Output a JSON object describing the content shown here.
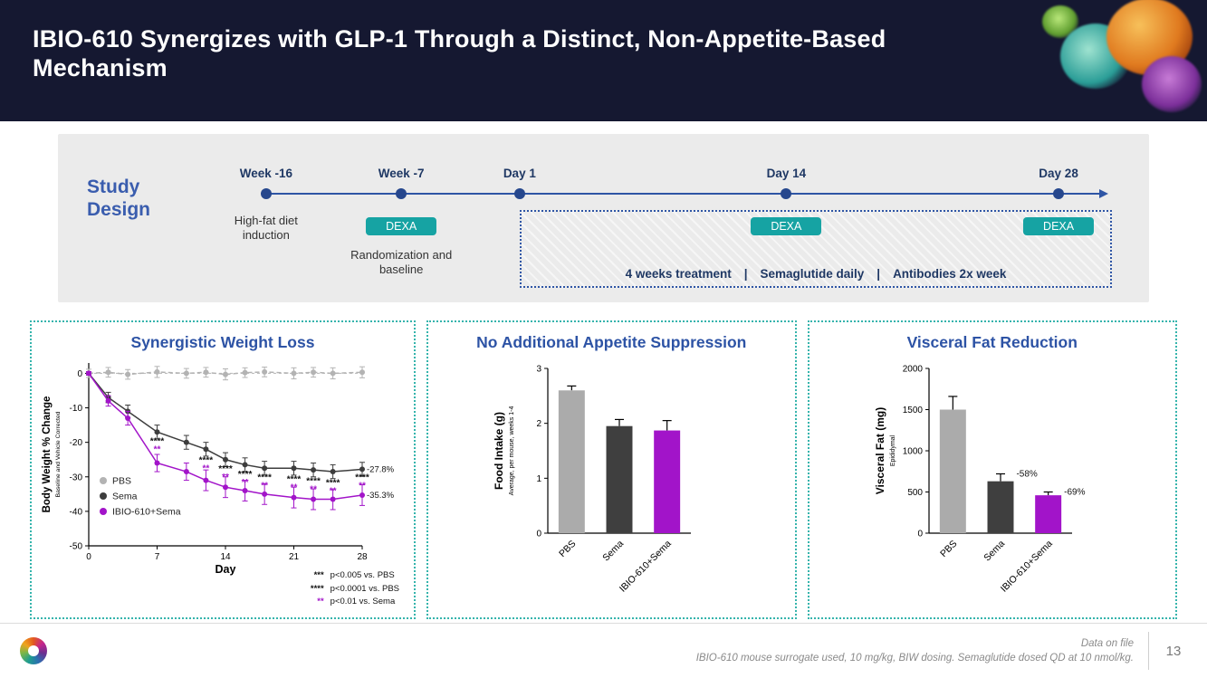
{
  "header": {
    "title": "IBIO-610 Synergizes with GLP-1 Through a Distinct, Non-Appetite-Based Mechanism"
  },
  "study_design": {
    "heading": "Study Design",
    "milestones": [
      {
        "label": "Week -16"
      },
      {
        "label": "Week -7"
      },
      {
        "label": "Day 1"
      },
      {
        "label": "Day 14"
      },
      {
        "label": "Day 28"
      }
    ],
    "hfd_label": "High-fat diet induction",
    "dexa_label": "DEXA",
    "randomization_label": "Randomization and baseline",
    "treatment": {
      "items": [
        "4 weeks treatment",
        "Semaglutide daily",
        "Antibodies 2x week"
      ],
      "sep": "|"
    }
  },
  "chart_data": [
    {
      "type": "line",
      "title": "Synergistic Weight Loss",
      "xlabel": "Day",
      "ylabel": "Body Weight % Change",
      "ylabel_sub": "Baseline and Vehicle Corrected",
      "xlim": [
        0,
        28
      ],
      "ylim": [
        -50,
        3
      ],
      "xticks": [
        0,
        7,
        14,
        21,
        28
      ],
      "yticks": [
        0,
        -10,
        -20,
        -30,
        -40,
        -50
      ],
      "grid": false,
      "legend_position": "lower-left",
      "x": [
        0,
        2,
        4,
        7,
        10,
        12,
        14,
        16,
        18,
        21,
        23,
        25,
        28
      ],
      "series": [
        {
          "name": "PBS",
          "color": "#b3b3b3",
          "dashed": true,
          "values": [
            0,
            0.3,
            -0.3,
            0.4,
            0,
            0.3,
            -0.3,
            0.2,
            0.4,
            0,
            0.3,
            0,
            0.3
          ],
          "err": [
            1.2,
            1.4,
            1.4,
            1.6,
            1.4,
            1.4,
            1.6,
            1.4,
            1.4,
            1.6,
            1.4,
            1.6,
            1.6
          ]
        },
        {
          "name": "Sema",
          "color": "#3d3d3d",
          "dashed": false,
          "values": [
            0,
            -7,
            -11,
            -17,
            -20,
            -22,
            -25,
            -26.5,
            -27.5,
            -27.5,
            -28,
            -28.5,
            -27.8
          ],
          "err": [
            0.5,
            1.5,
            1.8,
            2,
            2,
            2,
            2,
            2,
            2,
            2,
            2,
            2,
            2
          ]
        },
        {
          "name": "IBIO-610+Sema",
          "color": "#a214c9",
          "dashed": false,
          "values": [
            0,
            -8,
            -13,
            -26,
            -28.5,
            -31,
            -33,
            -34,
            -35,
            -36,
            -36.5,
            -36.5,
            -35.3
          ],
          "err": [
            0.5,
            1.5,
            2,
            2.5,
            2.5,
            3,
            3,
            3,
            3,
            3,
            3,
            3,
            3
          ]
        }
      ],
      "end_labels": [
        {
          "series": 1,
          "text": "-27.8%"
        },
        {
          "series": 2,
          "text": "-35.3%"
        }
      ],
      "sig": [
        {
          "day": 7,
          "black": "****",
          "purple": "**",
          "y": -20.5
        },
        {
          "day": 12,
          "black": "****",
          "purple": "**",
          "y": -26
        },
        {
          "day": 14,
          "black": "****",
          "purple": "**",
          "y": -28.5
        },
        {
          "day": 16,
          "black": "****",
          "purple": "**",
          "y": -30
        },
        {
          "day": 18,
          "black": "****",
          "purple": "**",
          "y": -31
        },
        {
          "day": 21,
          "black": "****",
          "purple": "**",
          "y": -31.5
        },
        {
          "day": 23,
          "black": "****",
          "purple": "**",
          "y": -32
        },
        {
          "day": 25,
          "black": "****",
          "purple": "**",
          "y": -32.5
        },
        {
          "day": 28,
          "black": "****",
          "purple": "**",
          "y": -31
        }
      ],
      "sig_key": [
        {
          "stars": "***",
          "text": "p<0.005 vs. PBS"
        },
        {
          "stars": "****",
          "text": "p<0.0001 vs. PBS"
        },
        {
          "stars": "**",
          "text": "p<0.01 vs. Sema"
        }
      ]
    },
    {
      "type": "bar",
      "title": "No Additional Appetite Suppression",
      "ylabel": "Food Intake (g)",
      "ylabel_sub": "Average, per mouse, weeks 1-4",
      "ylim": [
        0,
        3
      ],
      "yticks": [
        0,
        1,
        2,
        3
      ],
      "grid": false,
      "categories": [
        "PBS",
        "Sema",
        "IBIO-610+Sema"
      ],
      "values": [
        2.6,
        1.95,
        1.87
      ],
      "errors": [
        0.08,
        0.12,
        0.18
      ],
      "colors": [
        "#ababab",
        "#3f3f3f",
        "#a214c9"
      ],
      "bar_labels": [
        "",
        "",
        ""
      ]
    },
    {
      "type": "bar",
      "title": "Visceral Fat Reduction",
      "ylabel": "Visceral Fat (mg)",
      "ylabel_sub": "Epididymal",
      "ylim": [
        0,
        2000
      ],
      "yticks": [
        0,
        500,
        1000,
        1500,
        2000
      ],
      "grid": false,
      "categories": [
        "PBS",
        "Sema",
        "IBIO-610+Sema"
      ],
      "values": [
        1500,
        630,
        460
      ],
      "errors": [
        160,
        90,
        40
      ],
      "colors": [
        "#ababab",
        "#3f3f3f",
        "#a214c9"
      ],
      "bar_labels": [
        "",
        "-58%",
        "-69%"
      ]
    }
  ],
  "footer": {
    "note_line1": "Data on file",
    "note_line2": "IBIO-610 mouse surrogate used, 10 mg/kg, BIW dosing. Semaglutide dosed QD at 10 nmol/kg.",
    "page_number": "13"
  },
  "colors": {
    "header_bg": "#151831",
    "accent_blue": "#2d53a5",
    "navy": "#1f3864",
    "teal_badge": "#16a3a3",
    "panel_border_teal": "#35b4ac",
    "magenta": "#a214c9",
    "gray_bar": "#ababab",
    "dark_bar": "#3f3f3f"
  }
}
